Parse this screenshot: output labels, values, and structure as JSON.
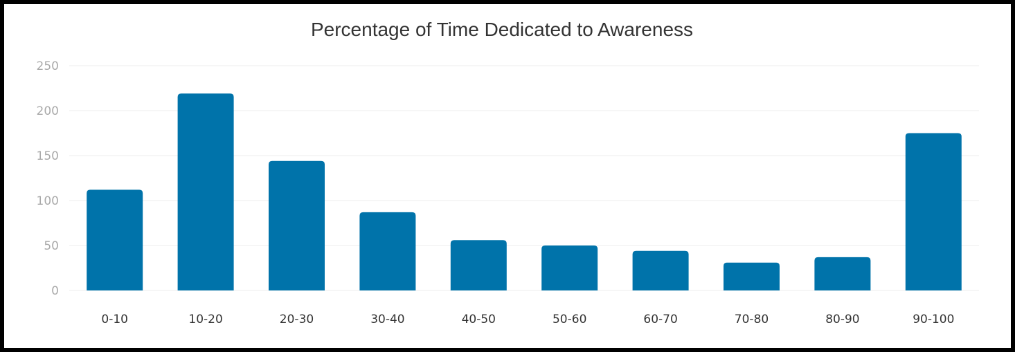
{
  "chart_data": {
    "type": "bar",
    "title": "Percentage of Time Dedicated to Awareness",
    "xlabel": "",
    "ylabel": "",
    "categories": [
      "0-10",
      "10-20",
      "20-30",
      "30-40",
      "40-50",
      "50-60",
      "60-70",
      "70-80",
      "80-90",
      "90-100"
    ],
    "values": [
      112,
      219,
      144,
      87,
      56,
      50,
      44,
      31,
      37,
      175
    ],
    "ylim": [
      0,
      250
    ],
    "yticks": [
      0,
      50,
      100,
      150,
      200,
      250
    ],
    "grid": true,
    "legend": "none",
    "bar_color": "#0073aa"
  }
}
